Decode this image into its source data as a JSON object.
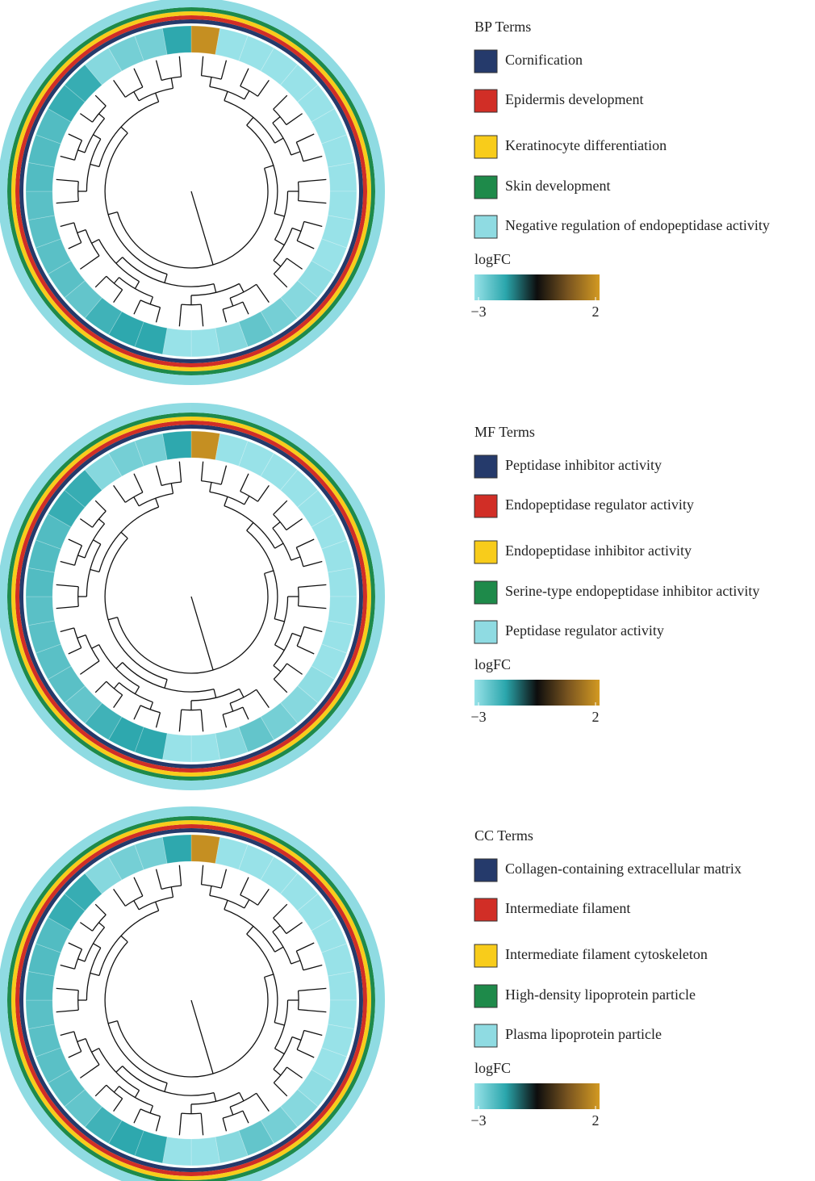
{
  "chart_data": [
    {
      "type": "gocluster",
      "title": "BP Terms",
      "terms": [
        {
          "name": "Cornification",
          "color": "#253a6b"
        },
        {
          "name": "Epidermis development",
          "color": "#d12e26"
        },
        {
          "name": "Keratinocyte differentiation",
          "color": "#f8cc1b"
        },
        {
          "name": "Skin development",
          "color": "#1e8a4a"
        },
        {
          "name": "Negative regulation of endopeptidase activity",
          "color": "#8fdbe2"
        }
      ],
      "colorbar_label": "logFC",
      "clim": [
        -3,
        2
      ],
      "cticks": [
        {
          "value": -3,
          "label": "−3"
        },
        2
      ],
      "colorscale": [
        "#98e2e8",
        "#2aa6ac",
        "#0d0d0d",
        "#7a5520",
        "#d39a22"
      ],
      "values": [
        1.8,
        -3,
        -3,
        -3,
        -3,
        -3,
        -3,
        -3,
        -3,
        -3,
        -3,
        -3,
        -2.9,
        -2.8,
        -2.6,
        -2.4,
        -2.8,
        -3,
        -3,
        -1.8,
        -1.8,
        -2.0,
        -2.4,
        -2.3,
        -2.3,
        -2.3,
        -2.3,
        -2.2,
        -2.2,
        -2.2,
        -1.9,
        -1.9,
        -2.8,
        -2.6,
        -2.6,
        -1.8
      ]
    },
    {
      "type": "gocluster",
      "title": "MF Terms",
      "terms": [
        {
          "name": "Peptidase inhibitor activity",
          "color": "#253a6b"
        },
        {
          "name": "Endopeptidase regulator activity",
          "color": "#d12e26"
        },
        {
          "name": "Endopeptidase inhibitor activity",
          "color": "#f8cc1b"
        },
        {
          "name": "Serine-type endopeptidase inhibitor activity",
          "color": "#1e8a4a"
        },
        {
          "name": "Peptidase regulator activity",
          "color": "#8fdbe2"
        }
      ],
      "colorbar_label": "logFC",
      "clim": [
        -3,
        2
      ],
      "cticks": [
        {
          "value": -3,
          "label": "−3"
        },
        2
      ],
      "colorscale": [
        "#98e2e8",
        "#2aa6ac",
        "#0d0d0d",
        "#7a5520",
        "#d39a22"
      ],
      "values": [
        1.8,
        -3,
        -3,
        -3,
        -3,
        -3,
        -3,
        -3,
        -3,
        -3,
        -3,
        -3,
        -2.9,
        -2.8,
        -2.6,
        -2.4,
        -2.8,
        -3,
        -3,
        -1.8,
        -1.8,
        -2.0,
        -2.4,
        -2.3,
        -2.3,
        -2.3,
        -2.3,
        -2.2,
        -2.2,
        -2.2,
        -1.9,
        -1.9,
        -2.8,
        -2.6,
        -2.6,
        -1.8
      ]
    },
    {
      "type": "gocluster",
      "title": "CC Terms",
      "terms": [
        {
          "name": "Collagen-containing extracellular matrix",
          "color": "#253a6b"
        },
        {
          "name": "Intermediate filament",
          "color": "#d12e26"
        },
        {
          "name": "Intermediate filament cytoskeleton",
          "color": "#f8cc1b"
        },
        {
          "name": "High-density lipoprotein particle",
          "color": "#1e8a4a"
        },
        {
          "name": "Plasma lipoprotein particle",
          "color": "#8fdbe2"
        }
      ],
      "colorbar_label": "logFC",
      "clim": [
        -3,
        2
      ],
      "cticks": [
        {
          "value": -3,
          "label": "−3"
        },
        2
      ],
      "colorscale": [
        "#98e2e8",
        "#2aa6ac",
        "#0d0d0d",
        "#7a5520",
        "#d39a22"
      ],
      "values": [
        1.8,
        -3,
        -3,
        -3,
        -3,
        -3,
        -3,
        -3,
        -3,
        -3,
        -3,
        -3,
        -2.9,
        -2.8,
        -2.6,
        -2.4,
        -2.8,
        -3,
        -3,
        -1.8,
        -1.8,
        -2.0,
        -2.4,
        -2.3,
        -2.3,
        -2.3,
        -2.3,
        -2.2,
        -2.2,
        -2.2,
        -1.9,
        -1.9,
        -2.8,
        -2.6,
        -2.6,
        -1.8
      ]
    }
  ]
}
